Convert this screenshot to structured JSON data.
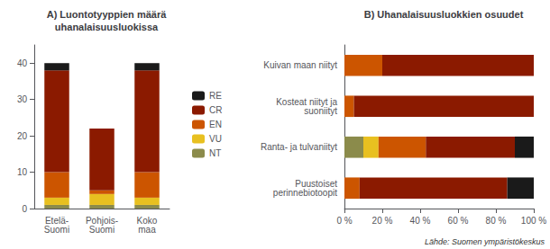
{
  "chart_data": [
    {
      "type": "bar",
      "stacked": true,
      "legend": "right",
      "grid": false,
      "title": "A) Luontotyyppien määrä\nuhanalaisuusluokissa",
      "categories": [
        "Etelä-\nSuomi",
        "Pohjois-\nSuomi",
        "Koko\nmaa"
      ],
      "series": [
        {
          "name": "NT",
          "color": "#8B8B4B",
          "values": [
            1,
            1,
            1
          ]
        },
        {
          "name": "VU",
          "color": "#E8C020",
          "values": [
            2,
            3,
            2
          ]
        },
        {
          "name": "EN",
          "color": "#CC5500",
          "values": [
            7,
            1,
            7
          ]
        },
        {
          "name": "CR",
          "color": "#8B1A00",
          "values": [
            28,
            17,
            28
          ]
        },
        {
          "name": "RE",
          "color": "#1a1a1a",
          "values": [
            2,
            0,
            2
          ]
        }
      ],
      "ylim": [
        0,
        45
      ],
      "yticks": [
        0,
        10,
        20,
        30,
        40
      ]
    },
    {
      "type": "bar",
      "stacked": true,
      "orientation": "horizontal",
      "grid": false,
      "title": "B) Uhanalaisuusluokkien osuudet",
      "categories": [
        "Kuivan maan niityt",
        "Kosteat niityt ja\nsuoniityt",
        "Ranta- ja tulvaniityt",
        "Puustoiset\nperinnebiotoopit"
      ],
      "series": [
        {
          "name": "NT",
          "color": "#8B8B4B",
          "values": [
            0.0,
            0.0,
            0.1,
            0.0
          ]
        },
        {
          "name": "VU",
          "color": "#E8C020",
          "values": [
            0.0,
            0.0,
            0.08,
            0.0
          ]
        },
        {
          "name": "EN",
          "color": "#CC5500",
          "values": [
            0.2,
            0.05,
            0.25,
            0.08
          ]
        },
        {
          "name": "CR",
          "color": "#8B1A00",
          "values": [
            0.8,
            0.95,
            0.47,
            0.78
          ]
        },
        {
          "name": "RE",
          "color": "#1a1a1a",
          "values": [
            0.0,
            0.0,
            0.1,
            0.14
          ]
        }
      ],
      "xlim": [
        0,
        1.0
      ],
      "xticks": [
        {
          "value": 0.0,
          "label": "0 %"
        },
        {
          "value": 0.2,
          "label": "20 %"
        },
        {
          "value": 0.4,
          "label": "40 %"
        },
        {
          "value": 0.6,
          "label": "60 %"
        },
        {
          "value": 0.8,
          "label": "80 %"
        },
        {
          "value": 1.0,
          "label": "100 %"
        }
      ],
      "annotations": [
        {
          "text": "Lähde: Suomen ympäristökeskus"
        }
      ]
    }
  ]
}
